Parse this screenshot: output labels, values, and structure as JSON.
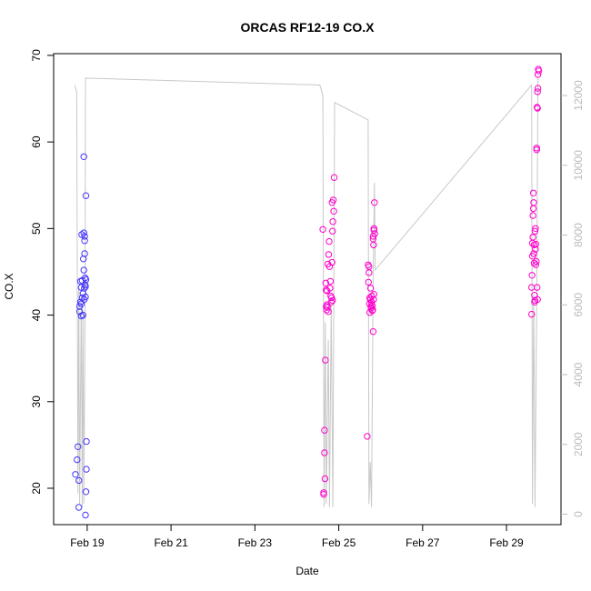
{
  "chart_data": {
    "type": "scatter",
    "title": "ORCAS RF12-19 CO.X",
    "xlabel": "Date",
    "ylabel": "CO.X",
    "x_ticks": [
      "Feb 19",
      "Feb 21",
      "Feb 23",
      "Feb 25",
      "Feb 27",
      "Feb 29"
    ],
    "x_tick_days": [
      19,
      21,
      23,
      25,
      27,
      29
    ],
    "xlim_days": [
      18.2,
      30.3
    ],
    "y_ticks": [
      20,
      30,
      40,
      50,
      60,
      70
    ],
    "ylim": [
      15.8,
      70.2
    ],
    "y2_ticks": [
      0,
      2000,
      4000,
      6000,
      8000,
      10000,
      12000
    ],
    "y2lim": [
      -300,
      13200
    ],
    "colors": {
      "early": "#3b3bff",
      "late": "#ff00cc",
      "altitude_line": "#c8c8c8",
      "axis": "#000000",
      "y2_axis": "#bbbbbb"
    },
    "series": [
      {
        "points": [
          [
            18.72,
            21.6
          ],
          [
            18.76,
            23.3
          ],
          [
            18.78,
            24.8
          ],
          [
            18.8,
            17.8
          ],
          [
            18.8,
            20.9
          ],
          [
            18.82,
            41.0
          ],
          [
            18.82,
            40.4
          ],
          [
            18.84,
            41.5
          ],
          [
            18.84,
            43.9
          ],
          [
            18.86,
            43.2
          ],
          [
            18.86,
            41.3
          ],
          [
            18.86,
            39.9
          ],
          [
            18.87,
            49.3
          ],
          [
            18.88,
            42.0
          ],
          [
            18.88,
            44.0
          ],
          [
            18.9,
            42.5
          ],
          [
            18.9,
            40.0
          ],
          [
            18.91,
            46.5
          ],
          [
            18.92,
            58.3
          ],
          [
            18.92,
            49.5
          ],
          [
            18.92,
            45.2
          ],
          [
            18.93,
            43.1
          ],
          [
            18.93,
            41.8
          ],
          [
            18.94,
            48.6
          ],
          [
            18.94,
            49.1
          ],
          [
            18.94,
            47.1
          ],
          [
            18.95,
            43.5
          ],
          [
            18.95,
            44.3
          ],
          [
            18.96,
            43.3
          ],
          [
            18.96,
            42.1
          ],
          [
            18.97,
            53.8
          ],
          [
            18.97,
            44.1
          ],
          [
            18.97,
            19.6
          ],
          [
            18.98,
            25.4
          ],
          [
            18.98,
            22.2
          ],
          [
            18.96,
            16.9
          ]
        ]
      },
      {
        "points": [
          [
            24.62,
            49.9
          ],
          [
            24.64,
            19.5
          ],
          [
            24.64,
            19.3
          ],
          [
            24.66,
            26.7
          ],
          [
            24.66,
            24.1
          ],
          [
            24.67,
            21.1
          ],
          [
            24.68,
            34.8
          ],
          [
            24.69,
            43.7
          ],
          [
            24.7,
            42.9
          ],
          [
            24.7,
            41.0
          ],
          [
            24.71,
            40.6
          ],
          [
            24.72,
            41.2
          ],
          [
            24.72,
            42.8
          ],
          [
            24.73,
            40.9
          ],
          [
            24.74,
            45.9
          ],
          [
            24.75,
            40.4
          ],
          [
            24.76,
            47.0
          ],
          [
            24.77,
            48.5
          ],
          [
            24.78,
            45.6
          ],
          [
            24.79,
            43.1
          ],
          [
            24.8,
            43.9
          ],
          [
            24.81,
            42.2
          ],
          [
            24.82,
            41.5
          ],
          [
            24.83,
            42.0
          ],
          [
            24.84,
            46.1
          ],
          [
            24.85,
            41.7
          ],
          [
            24.86,
            50.8
          ],
          [
            24.87,
            53.3
          ],
          [
            24.88,
            52.0
          ],
          [
            24.89,
            55.9
          ],
          [
            24.85,
            49.7
          ],
          [
            24.84,
            53.0
          ]
        ]
      },
      {
        "points": [
          [
            25.68,
            26.0
          ],
          [
            25.7,
            45.8
          ],
          [
            25.71,
            43.8
          ],
          [
            25.72,
            44.9
          ],
          [
            25.72,
            45.6
          ],
          [
            25.73,
            41.3
          ],
          [
            25.74,
            40.3
          ],
          [
            25.74,
            42.0
          ],
          [
            25.75,
            41.8
          ],
          [
            25.76,
            43.1
          ],
          [
            25.77,
            41.0
          ],
          [
            25.77,
            40.8
          ],
          [
            25.78,
            41.5
          ],
          [
            25.79,
            42.2
          ],
          [
            25.8,
            40.5
          ],
          [
            25.8,
            41.1
          ],
          [
            25.81,
            40.6
          ],
          [
            25.82,
            49.1
          ],
          [
            25.82,
            48.8
          ],
          [
            25.83,
            48.1
          ],
          [
            25.84,
            50.0
          ],
          [
            25.84,
            49.8
          ],
          [
            25.85,
            53.0
          ],
          [
            25.82,
            38.1
          ],
          [
            25.83,
            41.8
          ],
          [
            25.84,
            42.4
          ],
          [
            25.86,
            49.4
          ]
        ]
      },
      {
        "points": [
          [
            29.6,
            40.1
          ],
          [
            29.6,
            43.2
          ],
          [
            29.61,
            44.6
          ],
          [
            29.62,
            46.8
          ],
          [
            29.62,
            48.3
          ],
          [
            29.63,
            49.0
          ],
          [
            29.63,
            51.5
          ],
          [
            29.64,
            52.3
          ],
          [
            29.64,
            54.1
          ],
          [
            29.65,
            53.0
          ],
          [
            29.65,
            47.1
          ],
          [
            29.66,
            46.0
          ],
          [
            29.66,
            48.1
          ],
          [
            29.67,
            42.3
          ],
          [
            29.67,
            41.5
          ],
          [
            29.68,
            41.7
          ],
          [
            29.68,
            49.7
          ],
          [
            29.69,
            50.0
          ],
          [
            29.69,
            47.6
          ],
          [
            29.7,
            48.2
          ],
          [
            29.7,
            45.8
          ],
          [
            29.71,
            46.2
          ],
          [
            29.72,
            59.1
          ],
          [
            29.72,
            59.3
          ],
          [
            29.73,
            64.0
          ],
          [
            29.74,
            63.9
          ],
          [
            29.74,
            65.8
          ],
          [
            29.75,
            66.2
          ],
          [
            29.75,
            67.8
          ],
          [
            29.76,
            68.4
          ],
          [
            29.77,
            68.2
          ],
          [
            29.73,
            43.2
          ],
          [
            29.74,
            41.8
          ]
        ]
      }
    ],
    "altitude_line": [
      [
        18.7,
        12300
      ],
      [
        18.75,
        12100
      ],
      [
        18.78,
        600
      ],
      [
        18.8,
        6500
      ],
      [
        18.82,
        300
      ],
      [
        18.86,
        6300
      ],
      [
        18.88,
        200
      ],
      [
        18.9,
        5800
      ],
      [
        18.92,
        300
      ],
      [
        18.95,
        6000
      ],
      [
        18.96,
        12500
      ],
      [
        24.55,
        12300
      ],
      [
        24.62,
        12000
      ],
      [
        24.65,
        200
      ],
      [
        24.68,
        5500
      ],
      [
        24.7,
        300
      ],
      [
        24.75,
        5000
      ],
      [
        24.78,
        200
      ],
      [
        24.82,
        6000
      ],
      [
        24.86,
        200
      ],
      [
        24.9,
        11800
      ],
      [
        25.7,
        11300
      ],
      [
        25.72,
        300
      ],
      [
        25.75,
        1500
      ],
      [
        25.78,
        200
      ],
      [
        25.82,
        6800
      ],
      [
        25.85,
        9500
      ],
      [
        25.87,
        7000
      ],
      [
        29.6,
        12300
      ],
      [
        29.62,
        300
      ],
      [
        29.65,
        6300
      ],
      [
        29.68,
        200
      ],
      [
        29.72,
        6000
      ],
      [
        29.75,
        12500
      ]
    ]
  }
}
